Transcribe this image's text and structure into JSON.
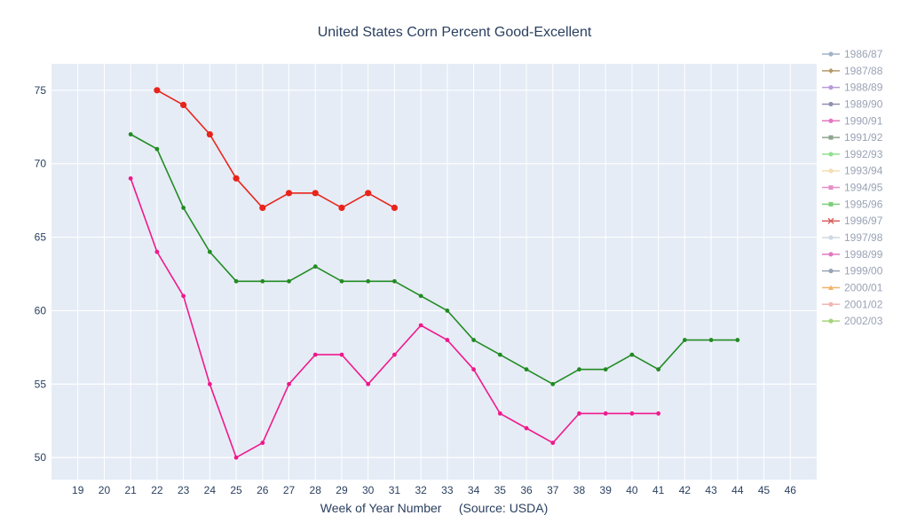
{
  "chart_data": {
    "type": "line",
    "title": "United States Corn Percent Good-Excellent",
    "xlabel": "Week of Year Number     (Source: USDA)",
    "ylabel": "",
    "x_ticks": [
      19,
      20,
      21,
      22,
      23,
      24,
      25,
      26,
      27,
      28,
      29,
      30,
      31,
      32,
      33,
      34,
      35,
      36,
      37,
      38,
      39,
      40,
      41,
      42,
      43,
      44,
      45,
      46
    ],
    "y_ticks": [
      50,
      55,
      60,
      65,
      70,
      75
    ],
    "xlim": [
      18,
      47
    ],
    "ylim": [
      48.5,
      76.8
    ],
    "legend_position": "right",
    "legend": [
      {
        "name": "1986/87",
        "color": "#9fb3c8",
        "marker": "circle"
      },
      {
        "name": "1987/88",
        "color": "#b59a6a",
        "marker": "diamond"
      },
      {
        "name": "1988/89",
        "color": "#b79bd8",
        "marker": "circle"
      },
      {
        "name": "1989/90",
        "color": "#8f8fb0",
        "marker": "circle"
      },
      {
        "name": "1990/91",
        "color": "#e377c2",
        "marker": "circle"
      },
      {
        "name": "1991/92",
        "color": "#8ca58c",
        "marker": "square"
      },
      {
        "name": "1992/93",
        "color": "#8fe08f",
        "marker": "circle"
      },
      {
        "name": "1993/94",
        "color": "#f5deb3",
        "marker": "circle"
      },
      {
        "name": "1994/95",
        "color": "#e58fc6",
        "marker": "square"
      },
      {
        "name": "1995/96",
        "color": "#7ccf7c",
        "marker": "square"
      },
      {
        "name": "1996/97",
        "color": "#d96060",
        "marker": "x"
      },
      {
        "name": "1997/98",
        "color": "#cfd8e3",
        "marker": "circle"
      },
      {
        "name": "1998/99",
        "color": "#e377c2",
        "marker": "circle"
      },
      {
        "name": "1999/00",
        "color": "#97a4b3",
        "marker": "circle"
      },
      {
        "name": "2000/01",
        "color": "#f2b36b",
        "marker": "triangle"
      },
      {
        "name": "2001/02",
        "color": "#f1b5b5",
        "marker": "circle"
      },
      {
        "name": "2002/03",
        "color": "#a5d37a",
        "marker": "circle"
      }
    ],
    "series": [
      {
        "name": "red",
        "color": "#e8241b",
        "marker_size": 3.6,
        "x": [
          22,
          23,
          24,
          25,
          26,
          27,
          28,
          29,
          30,
          31
        ],
        "y": [
          75,
          74,
          72,
          69,
          67,
          68,
          68,
          67,
          68,
          67
        ]
      },
      {
        "name": "green",
        "color": "#228b22",
        "marker_size": 2.4,
        "x": [
          21,
          22,
          23,
          24,
          25,
          26,
          27,
          28,
          29,
          30,
          31,
          32,
          33,
          34,
          35,
          36,
          37,
          38,
          39,
          40,
          41,
          42,
          43,
          44
        ],
        "y": [
          72,
          71,
          67,
          64,
          62,
          62,
          62,
          63,
          62,
          62,
          62,
          61,
          60,
          58,
          57,
          56,
          55,
          56,
          56,
          57,
          56,
          58,
          58,
          58
        ]
      },
      {
        "name": "pink",
        "color": "#f0198c",
        "marker_size": 2.4,
        "x": [
          21,
          22,
          23,
          24,
          25,
          26,
          27,
          28,
          29,
          30,
          31,
          32,
          33,
          34,
          35,
          36,
          37,
          38,
          39,
          40,
          41
        ],
        "y": [
          69,
          64,
          61,
          55,
          50,
          51,
          55,
          57,
          57,
          55,
          57,
          59,
          58,
          56,
          53,
          52,
          51,
          53,
          53,
          53,
          53
        ]
      }
    ]
  }
}
